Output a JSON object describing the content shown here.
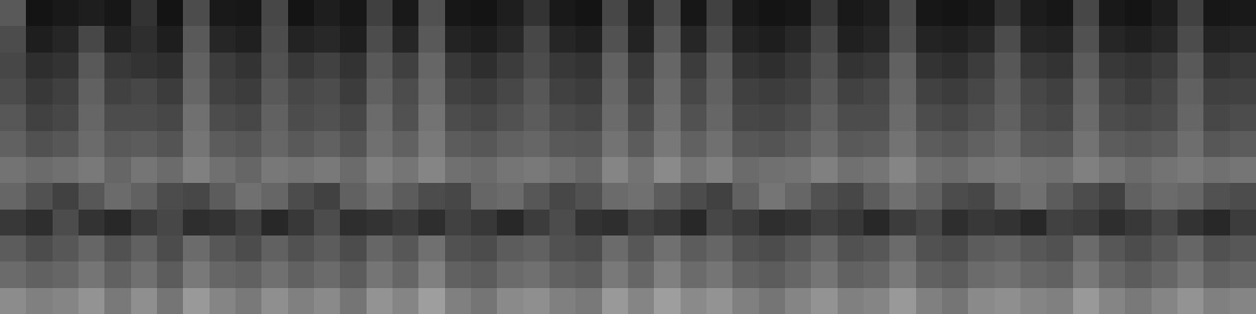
{
  "chart_data": {
    "type": "heatmap",
    "color": "gray",
    "color_range": [
      0,
      100
    ],
    "tick_labels": false,
    "cells": [
      [
        35,
        8,
        10,
        12,
        9,
        20,
        8,
        30,
        10,
        9,
        28,
        8,
        12,
        9,
        25,
        10,
        32,
        9,
        8,
        12,
        20,
        10,
        8,
        28,
        11,
        30,
        9,
        26,
        10,
        8,
        9,
        22,
        10,
        12,
        30,
        9,
        8,
        10,
        20,
        11,
        9,
        28,
        10,
        8,
        12,
        26,
        9,
        10
      ],
      [
        30,
        12,
        15,
        28,
        14,
        18,
        12,
        35,
        15,
        13,
        30,
        14,
        16,
        12,
        30,
        15,
        35,
        14,
        12,
        16,
        28,
        15,
        13,
        32,
        14,
        35,
        15,
        30,
        14,
        12,
        16,
        28,
        13,
        15,
        32,
        14,
        13,
        16,
        30,
        15,
        14,
        32,
        15,
        13,
        16,
        30,
        14,
        15
      ],
      [
        28,
        18,
        20,
        35,
        22,
        20,
        18,
        38,
        24,
        20,
        32,
        22,
        26,
        20,
        35,
        25,
        40,
        22,
        18,
        24,
        30,
        22,
        20,
        38,
        22,
        40,
        24,
        36,
        20,
        18,
        22,
        32,
        20,
        22,
        38,
        20,
        18,
        24,
        34,
        22,
        20,
        36,
        22,
        20,
        24,
        35,
        20,
        22
      ],
      [
        30,
        22,
        25,
        38,
        26,
        28,
        24,
        40,
        26,
        24,
        35,
        28,
        30,
        24,
        38,
        30,
        42,
        26,
        24,
        28,
        34,
        26,
        24,
        40,
        26,
        42,
        28,
        38,
        25,
        24,
        26,
        35,
        26,
        28,
        40,
        26,
        24,
        28,
        36,
        28,
        25,
        40,
        27,
        24,
        28,
        38,
        25,
        26
      ],
      [
        34,
        26,
        28,
        40,
        30,
        30,
        28,
        44,
        30,
        28,
        38,
        30,
        32,
        28,
        42,
        32,
        45,
        30,
        28,
        32,
        36,
        30,
        28,
        42,
        30,
        44,
        32,
        40,
        28,
        27,
        30,
        38,
        30,
        30,
        42,
        30,
        28,
        32,
        38,
        30,
        28,
        42,
        30,
        28,
        30,
        40,
        28,
        30
      ],
      [
        38,
        32,
        34,
        42,
        35,
        36,
        33,
        46,
        36,
        34,
        40,
        35,
        38,
        33,
        44,
        38,
        48,
        36,
        34,
        38,
        40,
        35,
        34,
        45,
        36,
        47,
        38,
        44,
        34,
        33,
        36,
        42,
        35,
        36,
        45,
        36,
        34,
        38,
        42,
        35,
        34,
        45,
        36,
        34,
        36,
        43,
        34,
        36
      ],
      [
        45,
        42,
        44,
        48,
        40,
        46,
        42,
        50,
        44,
        40,
        47,
        45,
        48,
        42,
        50,
        46,
        52,
        44,
        42,
        46,
        48,
        44,
        40,
        52,
        45,
        54,
        46,
        50,
        42,
        44,
        45,
        50,
        44,
        46,
        52,
        44,
        42,
        46,
        48,
        45,
        44,
        50,
        46,
        42,
        45,
        48,
        44,
        46
      ],
      [
        40,
        32,
        26,
        34,
        42,
        38,
        30,
        28,
        36,
        44,
        40,
        30,
        26,
        38,
        44,
        36,
        30,
        28,
        40,
        42,
        34,
        28,
        32,
        42,
        44,
        36,
        30,
        26,
        38,
        46,
        40,
        32,
        28,
        36,
        44,
        38,
        30,
        28,
        40,
        44,
        36,
        30,
        26,
        38,
        42,
        40,
        32,
        30
      ],
      [
        22,
        18,
        30,
        20,
        16,
        24,
        28,
        18,
        20,
        26,
        16,
        22,
        30,
        18,
        20,
        24,
        18,
        26,
        22,
        16,
        24,
        30,
        20,
        18,
        26,
        22,
        16,
        28,
        24,
        18,
        20,
        26,
        22,
        16,
        24,
        28,
        18,
        22,
        20,
        16,
        26,
        24,
        18,
        22,
        28,
        20,
        16,
        24
      ],
      [
        36,
        30,
        34,
        40,
        32,
        38,
        30,
        42,
        34,
        30,
        38,
        32,
        36,
        30,
        40,
        34,
        44,
        32,
        30,
        36,
        38,
        32,
        30,
        42,
        34,
        44,
        36,
        40,
        32,
        30,
        34,
        40,
        32,
        34,
        42,
        32,
        30,
        36,
        38,
        34,
        32,
        42,
        34,
        30,
        34,
        40,
        32,
        34
      ],
      [
        42,
        38,
        40,
        46,
        38,
        44,
        36,
        48,
        40,
        38,
        44,
        38,
        42,
        36,
        46,
        40,
        50,
        38,
        36,
        42,
        44,
        38,
        36,
        48,
        40,
        50,
        42,
        46,
        38,
        36,
        40,
        46,
        38,
        40,
        48,
        38,
        36,
        42,
        44,
        40,
        38,
        48,
        40,
        36,
        40,
        46,
        38,
        40
      ],
      [
        55,
        50,
        52,
        58,
        48,
        56,
        46,
        60,
        52,
        48,
        56,
        50,
        54,
        46,
        58,
        52,
        62,
        50,
        46,
        54,
        56,
        50,
        48,
        60,
        52,
        62,
        54,
        58,
        50,
        46,
        52,
        58,
        50,
        52,
        60,
        50,
        46,
        54,
        56,
        52,
        50,
        60,
        52,
        48,
        52,
        58,
        50,
        52
      ]
    ]
  }
}
